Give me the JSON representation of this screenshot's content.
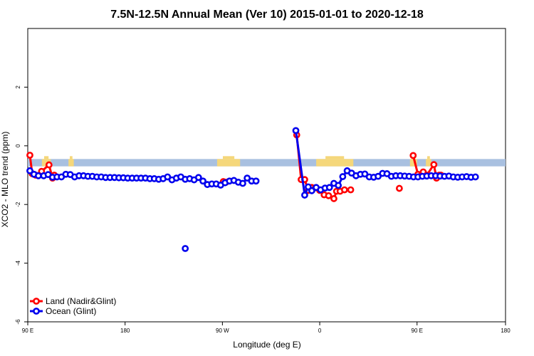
{
  "chart_data": {
    "type": "line",
    "title": "7.5N-12.5N Annual Mean (Ver 10)   2015-01-01 to 2020-12-18",
    "xlabel": "Longitude (deg E)",
    "ylabel": "XCO2 - MLO trend (ppm)",
    "xlim": [
      -90,
      180
    ],
    "ylim": [
      -6,
      4
    ],
    "x_ticks": [
      {
        "value": -90,
        "label": "90 E"
      },
      {
        "value": -35,
        "label": "180"
      },
      {
        "value": 20,
        "label": "90 W"
      },
      {
        "value": 75,
        "label": "0"
      },
      {
        "value": 130,
        "label": "90 E"
      },
      {
        "value": 180,
        "label": "180"
      }
    ],
    "y_ticks": [
      -6,
      -4,
      -2,
      0,
      2
    ],
    "land_sea_band": {
      "ocean_color": "#a9c0e0",
      "land_color": "#f5d77a",
      "y_range": [
        -0.7,
        -0.45
      ],
      "land_segments": [
        [
          -82,
          -77
        ],
        [
          -67,
          -64
        ],
        [
          17,
          30
        ],
        [
          73,
          94
        ],
        [
          126,
          130
        ],
        [
          135,
          138
        ]
      ]
    },
    "legend": {
      "position": "bottom-left",
      "entries": [
        {
          "label": "Land (Nadir&Glint)",
          "color": "#ff0000"
        },
        {
          "label": "Ocean (Glint)",
          "color": "#0000ee"
        }
      ]
    },
    "series": [
      {
        "name": "Land (Nadir&Glint)",
        "color": "#ff0000",
        "segments": [
          [
            [
              -88.8,
              -0.32
            ],
            [
              -87.5,
              -0.95
            ],
            [
              -85.5,
              -1.0
            ],
            [
              -82.2,
              -0.87
            ],
            [
              -78.0,
              -0.65
            ],
            [
              -76.0,
              -1.1
            ],
            [
              -75.0,
              -1.0
            ]
          ],
          [
            [
              20.5,
              -1.22
            ],
            [
              22,
              -1.24
            ]
          ],
          [
            [
              62.0,
              0.37
            ],
            [
              64.5,
              -1.15
            ],
            [
              66.5,
              -1.15
            ],
            [
              68.5,
              -1.52
            ],
            [
              70.5,
              -1.42
            ],
            [
              72.5,
              -1.43
            ],
            [
              75.0,
              -1.52
            ],
            [
              77.5,
              -1.67
            ],
            [
              80.0,
              -1.7
            ],
            [
              83.0,
              -1.8
            ],
            [
              84.5,
              -1.55
            ],
            [
              86.5,
              -1.55
            ],
            [
              89.0,
              -1.5
            ],
            [
              92.5,
              -1.5
            ]
          ],
          [
            [
              120,
              -1.45
            ]
          ],
          [
            [
              127.8,
              -0.33
            ],
            [
              130.5,
              -0.97
            ],
            [
              132.5,
              -1.0
            ],
            [
              133.5,
              -0.89
            ],
            [
              135.5,
              -1.0
            ],
            [
              139.5,
              -0.64
            ],
            [
              141.0,
              -1.1
            ],
            [
              142.5,
              -1.0
            ],
            [
              143.5,
              -1.0
            ]
          ]
        ]
      },
      {
        "name": "Ocean (Glint)",
        "color": "#0000ee",
        "segments": [
          [
            [
              -88.8,
              -0.85
            ],
            [
              -86.5,
              -0.97
            ],
            [
              -84.0,
              -1.02
            ],
            [
              -81.0,
              -1.02
            ],
            [
              -78.5,
              -0.98
            ],
            [
              -76.0,
              -1.07
            ],
            [
              -73.5,
              -1.06
            ],
            [
              -71.0,
              -1.06
            ],
            [
              -68.5,
              -0.97
            ],
            [
              -66.0,
              -0.98
            ],
            [
              -63.5,
              -1.06
            ],
            [
              -61.0,
              -1.02
            ],
            [
              -58.5,
              -1.02
            ],
            [
              -56.0,
              -1.04
            ],
            [
              -53.5,
              -1.04
            ],
            [
              -51.0,
              -1.06
            ],
            [
              -48.5,
              -1.06
            ],
            [
              -46.0,
              -1.08
            ],
            [
              -43.5,
              -1.08
            ],
            [
              -41.0,
              -1.08
            ],
            [
              -38.5,
              -1.09
            ],
            [
              -36.0,
              -1.09
            ],
            [
              -33.5,
              -1.1
            ],
            [
              -31.0,
              -1.1
            ],
            [
              -28.5,
              -1.1
            ],
            [
              -26.0,
              -1.1
            ],
            [
              -23.5,
              -1.1
            ],
            [
              -21.0,
              -1.12
            ],
            [
              -18.5,
              -1.12
            ],
            [
              -16.0,
              -1.14
            ],
            [
              -13.5,
              -1.12
            ],
            [
              -11.0,
              -1.06
            ],
            [
              -8.5,
              -1.16
            ],
            [
              -6.0,
              -1.1
            ],
            [
              -3.5,
              -1.06
            ],
            [
              -1.0,
              -1.14
            ],
            [
              1.5,
              -1.12
            ],
            [
              4.0,
              -1.16
            ],
            [
              6.5,
              -1.08
            ],
            [
              9.0,
              -1.2
            ],
            [
              11.5,
              -1.32
            ],
            [
              14.0,
              -1.3
            ],
            [
              16.5,
              -1.3
            ],
            [
              19.0,
              -1.34
            ],
            [
              21.5,
              -1.26
            ],
            [
              24.0,
              -1.2
            ],
            [
              26.5,
              -1.18
            ],
            [
              29.0,
              -1.24
            ],
            [
              31.5,
              -1.28
            ],
            [
              34.0,
              -1.1
            ],
            [
              36.5,
              -1.2
            ],
            [
              39.0,
              -1.2
            ]
          ],
          [
            [
              61.5,
              0.52
            ],
            [
              66.5,
              -1.68
            ],
            [
              68.5,
              -1.4
            ],
            [
              70.5,
              -1.53
            ],
            [
              73.0,
              -1.42
            ],
            [
              75.5,
              -1.5
            ],
            [
              78.0,
              -1.44
            ],
            [
              80.5,
              -1.42
            ],
            [
              83.0,
              -1.28
            ],
            [
              85.5,
              -1.35
            ],
            [
              88.0,
              -1.05
            ],
            [
              90.5,
              -0.85
            ],
            [
              93.0,
              -0.93
            ],
            [
              95.5,
              -1.02
            ],
            [
              98.0,
              -0.97
            ],
            [
              100.5,
              -0.96
            ],
            [
              103.0,
              -1.06
            ],
            [
              105.5,
              -1.07
            ],
            [
              108.0,
              -1.04
            ],
            [
              110.5,
              -0.94
            ],
            [
              113.0,
              -0.95
            ],
            [
              115.5,
              -1.04
            ],
            [
              118.0,
              -1.02
            ],
            [
              120.5,
              -1.02
            ],
            [
              123.0,
              -1.03
            ],
            [
              125.5,
              -1.04
            ],
            [
              128.0,
              -1.06
            ],
            [
              130.5,
              -1.06
            ],
            [
              133.0,
              -1.04
            ],
            [
              135.5,
              -1.03
            ],
            [
              138.0,
              -1.02
            ],
            [
              140.5,
              -1.02
            ],
            [
              143.0,
              -1.03
            ],
            [
              145.5,
              -1.04
            ],
            [
              148.0,
              -1.03
            ],
            [
              150.5,
              -1.06
            ],
            [
              153.0,
              -1.07
            ],
            [
              155.5,
              -1.06
            ],
            [
              158.0,
              -1.05
            ],
            [
              160.5,
              -1.07
            ],
            [
              163.0,
              -1.06
            ]
          ],
          [
            [
              -1.0,
              -3.5
            ]
          ]
        ]
      }
    ]
  }
}
